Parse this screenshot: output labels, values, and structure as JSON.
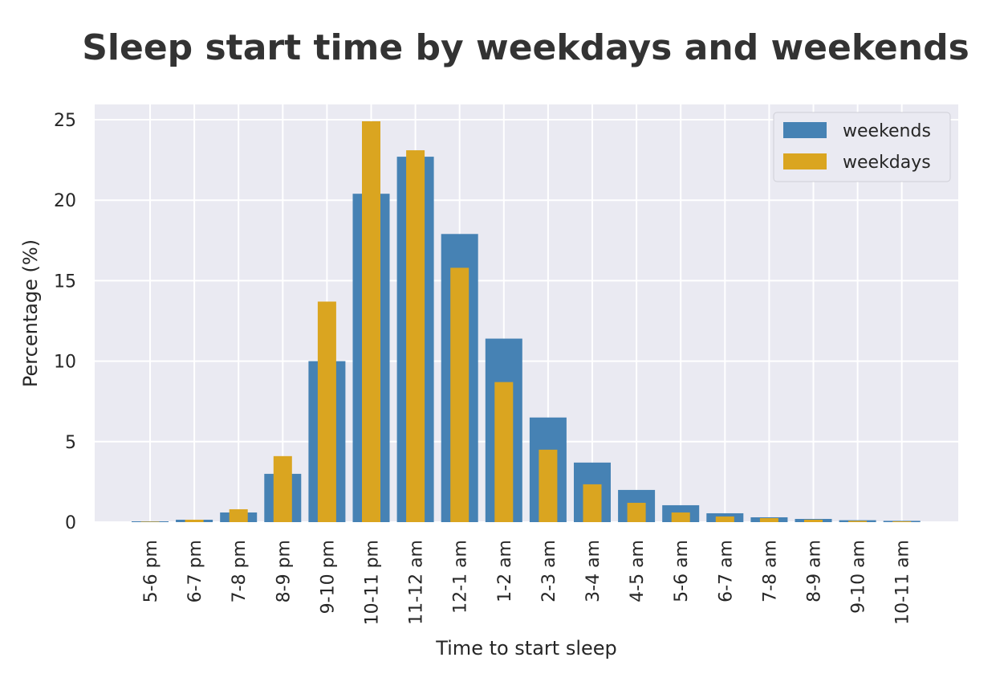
{
  "chart_data": {
    "type": "bar",
    "title": "Sleep start time by weekdays and weekends",
    "xlabel": "Time to start sleep",
    "ylabel": "Percentage (%)",
    "ylim": [
      0,
      26
    ],
    "yticks": [
      0,
      5,
      10,
      15,
      20,
      25
    ],
    "grid": true,
    "legend_position": "top-right",
    "categories": [
      "5-6 pm",
      "6-7 pm",
      "7-8 pm",
      "8-9 pm",
      "9-10 pm",
      "10-11 pm",
      "11-12 am",
      "12-1 am",
      "1-2 am",
      "2-3 am",
      "3-4 am",
      "4-5 am",
      "5-6 am",
      "6-7 am",
      "7-8 am",
      "8-9 am",
      "9-10 am",
      "10-11 am"
    ],
    "series": [
      {
        "name": "weekends",
        "color": "#4682b4",
        "values": [
          0.05,
          0.15,
          0.6,
          3.0,
          10.0,
          20.4,
          22.7,
          17.9,
          11.4,
          6.5,
          3.7,
          2.0,
          1.05,
          0.55,
          0.3,
          0.2,
          0.12,
          0.08
        ]
      },
      {
        "name": "weekdays",
        "color": "#daa520",
        "values": [
          0.03,
          0.15,
          0.8,
          4.1,
          13.7,
          24.9,
          23.1,
          15.8,
          8.7,
          4.5,
          2.35,
          1.2,
          0.6,
          0.35,
          0.25,
          0.15,
          0.08,
          0.05
        ]
      }
    ]
  }
}
